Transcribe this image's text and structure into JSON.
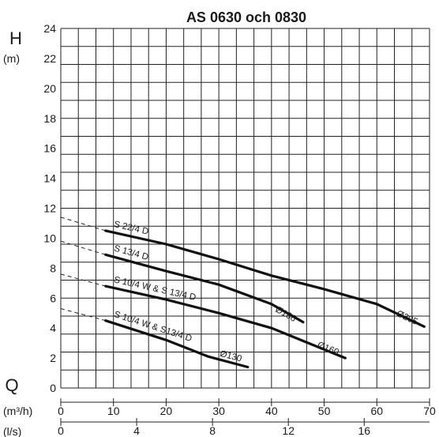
{
  "chart_data": {
    "type": "line",
    "title": "AS 0630 och 0830",
    "y_axis": {
      "symbol": "H",
      "unit": "(m)",
      "range": [
        0,
        24
      ],
      "ticks": [
        "0",
        "2",
        "4",
        "6",
        "8",
        "10",
        "12",
        "14",
        "16",
        "18",
        "20",
        "22",
        "24"
      ]
    },
    "x_axis": {
      "symbol": "Q",
      "unit_primary": "(m³/h)",
      "range": [
        0,
        70
      ],
      "ticks_primary": [
        "0",
        "10",
        "20",
        "30",
        "40",
        "50",
        "60",
        "70"
      ],
      "unit_secondary": "(l/s)",
      "ticks_secondary": [
        "0",
        "4",
        "8",
        "12",
        "16"
      ],
      "ticks_secondary_values": [
        0,
        4,
        8,
        12,
        16
      ]
    },
    "grid": true,
    "series": [
      {
        "name": "S 22/4 D",
        "end_label": "Ø205",
        "points": [
          [
            8.5,
            10.5
          ],
          [
            20,
            9.6
          ],
          [
            30,
            8.6
          ],
          [
            40,
            7.5
          ],
          [
            50,
            6.6
          ],
          [
            60,
            5.6
          ],
          [
            69,
            4.1
          ]
        ],
        "dashed_from": [
          0,
          11.4
        ]
      },
      {
        "name": "S 13/4 D",
        "end_label": "Ø186",
        "points": [
          [
            8.5,
            8.9
          ],
          [
            20,
            7.8
          ],
          [
            30,
            6.9
          ],
          [
            40,
            5.6
          ],
          [
            46,
            4.4
          ]
        ],
        "dashed_from": [
          0,
          9.8
        ]
      },
      {
        "name": "S 10/4 W & S 13/4 D",
        "end_label": "Ø160",
        "points": [
          [
            8.5,
            6.8
          ],
          [
            20,
            5.9
          ],
          [
            30,
            5.0
          ],
          [
            40,
            4.0
          ],
          [
            54,
            2.0
          ]
        ],
        "dashed_from": [
          0,
          7.6
        ]
      },
      {
        "name": "S 10/4 W & S13/4 D",
        "end_label": "Ø130",
        "points": [
          [
            8.5,
            4.5
          ],
          [
            20,
            3.2
          ],
          [
            28,
            2.1
          ],
          [
            35.5,
            1.4
          ]
        ],
        "dashed_from": [
          0,
          5.3
        ]
      }
    ]
  }
}
